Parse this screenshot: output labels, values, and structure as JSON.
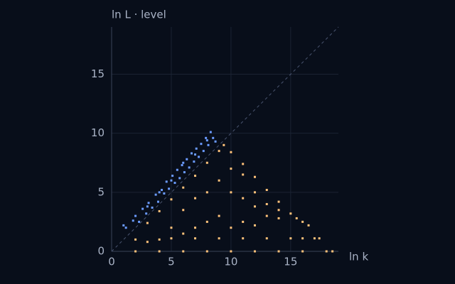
{
  "chart_data": {
    "type": "scatter",
    "y_label": "ln L · level",
    "x_label": "ln k",
    "xlim": [
      0,
      19
    ],
    "ylim": [
      0,
      19
    ],
    "xticks": [
      0,
      5,
      10,
      15
    ],
    "yticks": [
      0,
      5,
      10,
      15
    ],
    "grid": true,
    "diagonal": true,
    "series": [
      {
        "color": "#6b9bff",
        "x": [
          1.0,
          1.2,
          1.8,
          2.0,
          2.3,
          2.6,
          2.9,
          3.1,
          3.4,
          3.7,
          3.9,
          4.2,
          4.4,
          4.6,
          4.8,
          5.1,
          5.3,
          5.5,
          5.7,
          5.9,
          6.1,
          6.3,
          6.5,
          6.7,
          6.9,
          7.1,
          7.3,
          7.5,
          7.7,
          7.9,
          8.1,
          8.3,
          8.5,
          8.7,
          6.0,
          7.0,
          8.0,
          5.0,
          4.0,
          3.0
        ],
        "y": [
          2.2,
          2.0,
          2.6,
          3.0,
          2.5,
          3.6,
          3.2,
          4.1,
          3.7,
          4.8,
          4.2,
          5.2,
          4.9,
          5.9,
          5.3,
          6.4,
          5.8,
          6.9,
          6.2,
          7.3,
          6.7,
          7.8,
          7.1,
          8.3,
          7.6,
          8.7,
          8.0,
          9.1,
          8.5,
          9.6,
          9.0,
          10.1,
          9.6,
          9.3,
          7.5,
          8.2,
          9.4,
          6.0,
          5.0,
          3.8
        ]
      },
      {
        "color": "#ffc27a",
        "x": [
          9.4,
          3,
          4,
          5,
          6,
          7,
          8,
          9,
          6,
          7,
          8,
          9,
          10,
          11,
          10,
          11,
          12,
          12,
          13,
          13,
          14,
          14,
          9,
          8,
          7,
          10,
          11,
          12,
          5,
          6,
          4,
          3,
          2,
          10,
          11,
          12,
          13,
          14,
          15,
          15.5,
          16,
          16.5,
          5,
          7,
          9,
          11,
          13,
          15,
          16,
          17,
          17.4,
          2,
          4,
          6,
          8,
          10,
          12,
          14,
          16,
          18,
          18.5
        ],
        "y": [
          9.0,
          2.4,
          3.4,
          4.4,
          5.4,
          6.4,
          7.5,
          8.5,
          3.5,
          4.5,
          5.0,
          6.0,
          7.0,
          6.5,
          5.0,
          4.5,
          5.0,
          3.8,
          4.0,
          3.0,
          3.5,
          2.8,
          3.0,
          2.5,
          2.0,
          2.0,
          2.5,
          2.2,
          2.0,
          1.5,
          1.0,
          0.8,
          1.0,
          8.4,
          7.4,
          6.3,
          5.2,
          4.2,
          3.2,
          2.8,
          2.5,
          2.2,
          1.1,
          1.1,
          1.1,
          1.1,
          1.1,
          1.1,
          1.1,
          1.1,
          1.1,
          0,
          0,
          0,
          0,
          0,
          0,
          0,
          0,
          0,
          0
        ]
      }
    ]
  }
}
